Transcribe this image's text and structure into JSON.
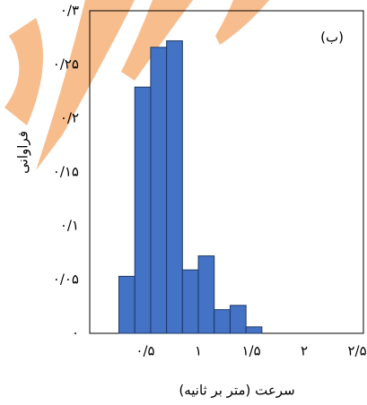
{
  "chart_data": {
    "type": "histogram",
    "annotation": "(ب)",
    "x_label": "سرعت (متر بر ثانیه)",
    "y_label": "فراوانی",
    "bins": [
      0.25,
      0.4,
      0.55,
      0.7,
      0.85,
      1.0,
      1.15,
      1.3,
      1.45,
      1.6
    ],
    "counts": [
      0.053,
      0.229,
      0.266,
      0.272,
      0.059,
      0.072,
      0.022,
      0.026,
      0.006
    ],
    "color": "#4472c4",
    "xlim": [
      0,
      2.55
    ],
    "ylim": [
      0,
      0.3
    ],
    "xticks": [
      {
        "value": 0.5,
        "label": "۰/۵"
      },
      {
        "value": 1,
        "label": "۱"
      },
      {
        "value": 1.5,
        "label": "۱/۵"
      },
      {
        "value": 2,
        "label": "۲"
      },
      {
        "value": 2.5,
        "label": "۲/۵"
      }
    ],
    "yticks": [
      {
        "value": 0,
        "label": "۰"
      },
      {
        "value": 0.05,
        "label": "۰/۰۵"
      },
      {
        "value": 0.1,
        "label": "۰/۱"
      },
      {
        "value": 0.15,
        "label": "۰/۱۵"
      },
      {
        "value": 0.2,
        "label": "۰/۲"
      },
      {
        "value": 0.25,
        "label": "۰/۲۵"
      },
      {
        "value": 0.3,
        "label": "۰/۳"
      }
    ],
    "grid": false
  }
}
